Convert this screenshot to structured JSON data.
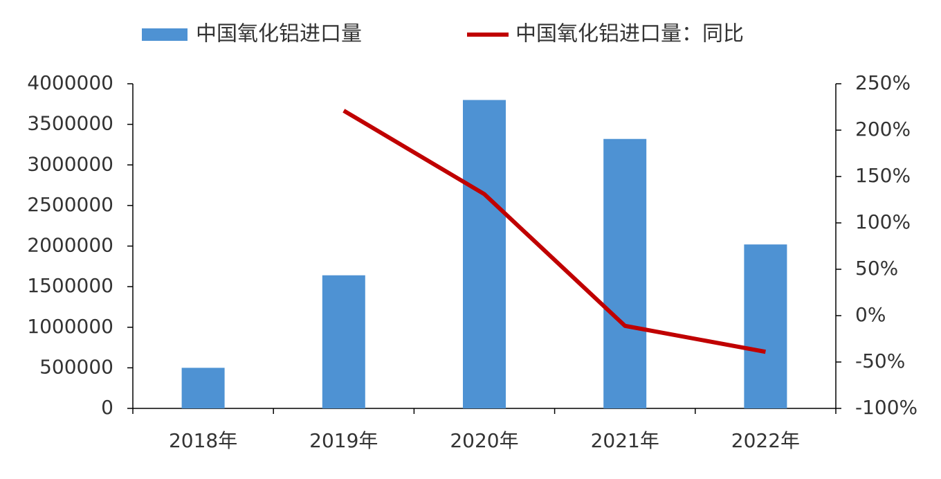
{
  "chart_data": {
    "type": "bar-line",
    "categories": [
      "2018年",
      "2019年",
      "2020年",
      "2021年",
      "2022年"
    ],
    "series": [
      {
        "name": "中国氧化铝进口量",
        "type": "bar",
        "color": "#4e92d3",
        "values": [
          500000,
          1640000,
          3800000,
          3320000,
          2020000
        ]
      },
      {
        "name": "中国氧化铝进口量：同比",
        "type": "line",
        "axis": "y2",
        "color": "#c00000",
        "values": [
          null,
          221,
          131,
          -11,
          -39
        ]
      }
    ],
    "ylim": [
      0,
      4000000
    ],
    "yticks": [
      0,
      500000,
      1000000,
      1500000,
      2000000,
      2500000,
      3000000,
      3500000,
      4000000
    ],
    "y2lim": [
      -100,
      250
    ],
    "y2ticks": [
      {
        "value": -100,
        "label": "-100%"
      },
      {
        "value": -50,
        "label": "-50%"
      },
      {
        "value": 0,
        "label": "0%"
      },
      {
        "value": 50,
        "label": "50%"
      },
      {
        "value": 100,
        "label": "100%"
      },
      {
        "value": 150,
        "label": "150%"
      },
      {
        "value": 200,
        "label": "200%"
      },
      {
        "value": 250,
        "label": "250%"
      }
    ],
    "legend": "top"
  }
}
